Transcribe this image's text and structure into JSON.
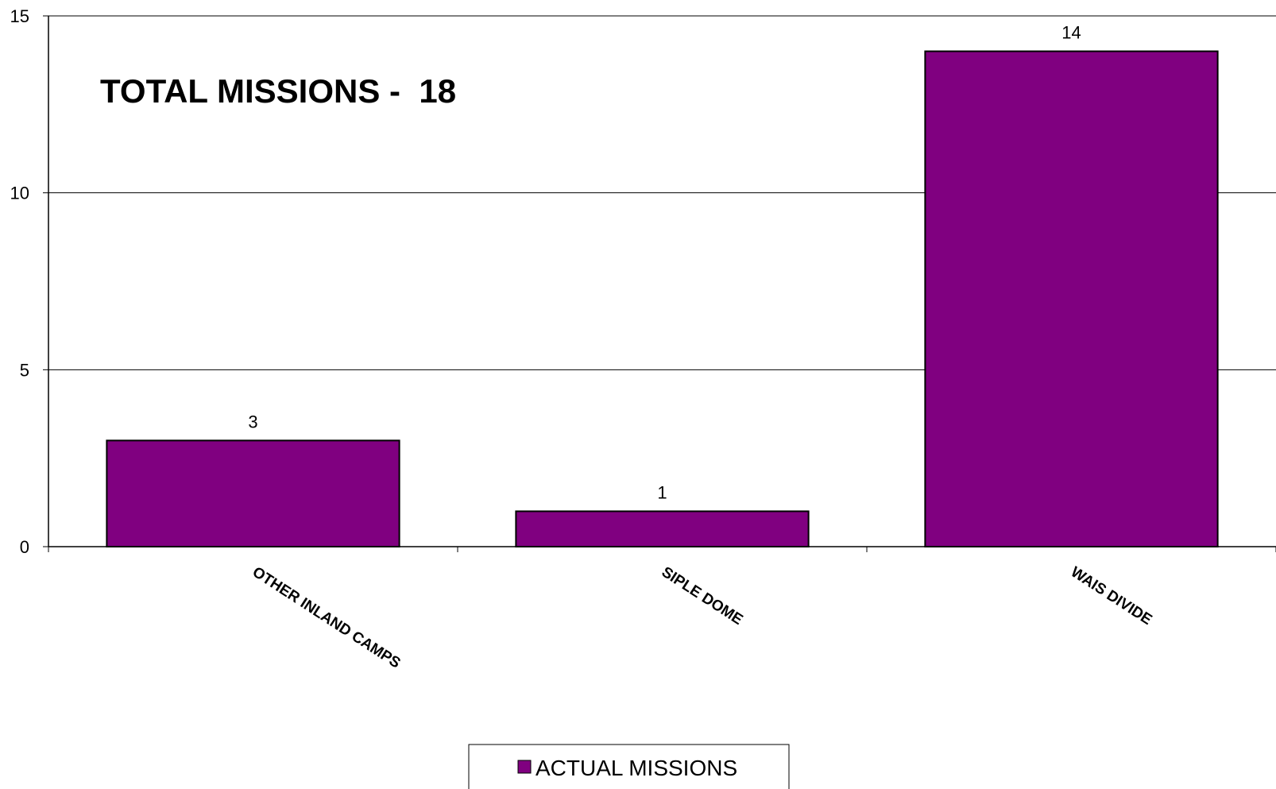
{
  "chart_data": {
    "type": "bar",
    "title": "TOTAL MISSIONS -  18",
    "categories": [
      "OTHER INLAND CAMPS",
      "SIPLE DOME",
      "WAIS DIVIDE"
    ],
    "series": [
      {
        "name": "ACTUAL MISSIONS",
        "values": [
          3,
          1,
          14
        ],
        "color": "#800080"
      }
    ],
    "ylim": [
      0,
      15
    ],
    "yticks": [
      "0",
      "5",
      "10",
      "15"
    ],
    "grid": true,
    "legend": "bottom-center",
    "xlabel": "",
    "ylabel": ""
  }
}
